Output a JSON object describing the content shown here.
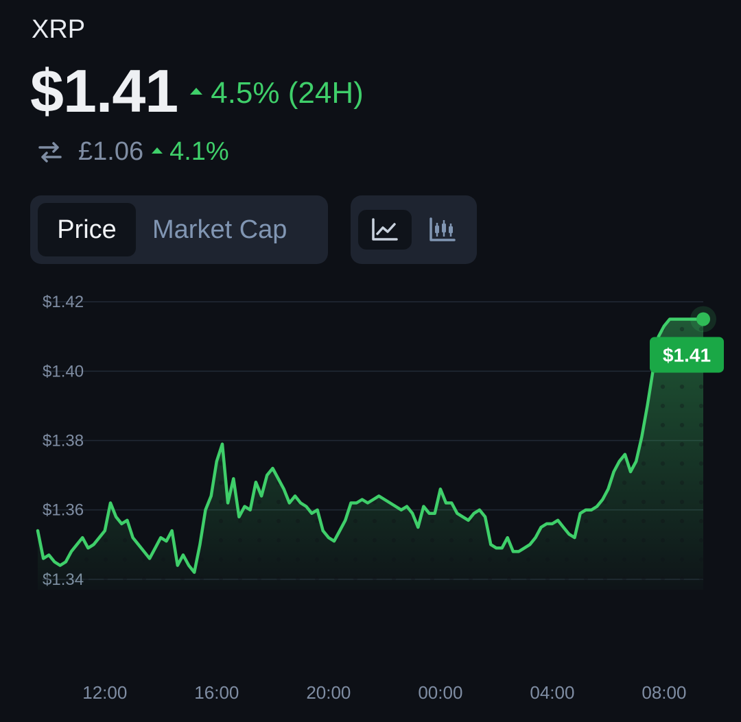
{
  "header": {
    "symbol": "XRP",
    "price": "$1.41",
    "change": "4.5% (24H)",
    "alt_price": "£1.06",
    "alt_change": "4.1%",
    "swap_icon": "swap-arrows-icon",
    "up_icon": "triangle-up-icon"
  },
  "tabs": [
    {
      "label": "Price",
      "active": true
    },
    {
      "label": "Market Cap",
      "active": false
    }
  ],
  "chart_toggle": [
    {
      "icon": "line-chart-icon",
      "active": true
    },
    {
      "icon": "candlestick-chart-icon",
      "active": false
    }
  ],
  "colors": {
    "background": "#0d1016",
    "accent_green": "#3fcf6a",
    "badge_green": "#1aa846",
    "muted": "#7f8da3"
  },
  "chart_data": {
    "type": "area",
    "y_ticks": [
      "$1.42",
      "$1.40",
      "$1.38",
      "$1.36",
      "$1.34"
    ],
    "y_tick_values": [
      1.42,
      1.4,
      1.38,
      1.36,
      1.34
    ],
    "ylim": [
      1.337,
      1.423
    ],
    "x_ticks": [
      "12:00",
      "16:00",
      "20:00",
      "00:00",
      "04:00",
      "08:00"
    ],
    "x_tick_hours": [
      12,
      16,
      20,
      24,
      28,
      32
    ],
    "xlim": [
      9.6,
      33.4
    ],
    "grid": true,
    "last_value_label": "$1.41",
    "series": [
      {
        "x": [
          9.6,
          9.8,
          10.0,
          10.2,
          10.4,
          10.6,
          10.8,
          11.0,
          11.2,
          11.4,
          11.6,
          11.8,
          12.0,
          12.2,
          12.4,
          12.6,
          12.8,
          13.0,
          13.2,
          13.4,
          13.6,
          13.8,
          14.0,
          14.2,
          14.4,
          14.6,
          14.8,
          15.0,
          15.2,
          15.4,
          15.6,
          15.8,
          16.0,
          16.2,
          16.4,
          16.6,
          16.8,
          17.0,
          17.2,
          17.4,
          17.6,
          17.8,
          18.0,
          18.2,
          18.4,
          18.6,
          18.8,
          19.0,
          19.2,
          19.4,
          19.6,
          19.8,
          20.0,
          20.2,
          20.4,
          20.6,
          20.8,
          21.0,
          21.2,
          21.4,
          21.6,
          21.8,
          22.0,
          22.2,
          22.4,
          22.6,
          22.8,
          23.0,
          23.2,
          23.4,
          23.6,
          23.8,
          24.0,
          24.2,
          24.4,
          24.6,
          24.8,
          25.0,
          25.2,
          25.4,
          25.6,
          25.8,
          26.0,
          26.2,
          26.4,
          26.6,
          26.8,
          27.0,
          27.2,
          27.4,
          27.6,
          27.8,
          28.0,
          28.2,
          28.4,
          28.6,
          28.8,
          29.0,
          29.2,
          29.4,
          29.6,
          29.8,
          30.0,
          30.2,
          30.4,
          30.6,
          30.8,
          31.0,
          31.2,
          31.4,
          31.6,
          31.8,
          32.0,
          32.2,
          32.4,
          32.6,
          32.8,
          33.0,
          33.2,
          33.4
        ],
        "y": [
          1.354,
          1.346,
          1.347,
          1.345,
          1.344,
          1.345,
          1.348,
          1.35,
          1.352,
          1.349,
          1.35,
          1.352,
          1.354,
          1.362,
          1.358,
          1.356,
          1.357,
          1.352,
          1.35,
          1.348,
          1.346,
          1.349,
          1.352,
          1.351,
          1.354,
          1.344,
          1.347,
          1.344,
          1.342,
          1.35,
          1.36,
          1.364,
          1.374,
          1.379,
          1.362,
          1.369,
          1.358,
          1.361,
          1.36,
          1.368,
          1.364,
          1.37,
          1.372,
          1.369,
          1.366,
          1.362,
          1.364,
          1.362,
          1.361,
          1.359,
          1.36,
          1.354,
          1.352,
          1.351,
          1.354,
          1.357,
          1.362,
          1.362,
          1.363,
          1.362,
          1.363,
          1.364,
          1.363,
          1.362,
          1.361,
          1.36,
          1.361,
          1.359,
          1.355,
          1.361,
          1.359,
          1.359,
          1.366,
          1.362,
          1.362,
          1.359,
          1.358,
          1.357,
          1.359,
          1.36,
          1.358,
          1.35,
          1.349,
          1.349,
          1.352,
          1.348,
          1.348,
          1.349,
          1.35,
          1.352,
          1.355,
          1.356,
          1.356,
          1.357,
          1.355,
          1.353,
          1.352,
          1.359,
          1.36,
          1.36,
          1.361,
          1.363,
          1.366,
          1.371,
          1.374,
          1.376,
          1.371,
          1.374,
          1.381,
          1.39,
          1.4,
          1.41,
          1.413,
          1.415,
          1.415,
          1.415,
          1.415,
          1.415,
          1.415,
          1.415
        ]
      }
    ]
  }
}
